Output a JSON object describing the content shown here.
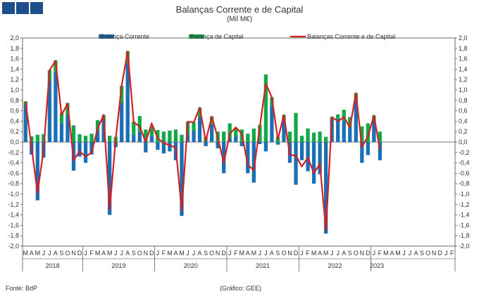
{
  "header": {
    "title": "Balanças Corrente e de Capital",
    "subtitle": "(Mil M€)"
  },
  "footer": {
    "source": "Fonte: BdP",
    "credit": "(Gráfico: GEE)"
  },
  "colors": {
    "current": "#1a6fb5",
    "capital": "#13a84a",
    "combined": "#d42020",
    "axis": "#444444",
    "grid": "#cccccc"
  },
  "chart_data": {
    "type": "bar",
    "stacked": true,
    "title": "Balanças Corrente e de Capital",
    "ylabel": "",
    "xlabel": "",
    "ylim": [
      -2.0,
      2.0
    ],
    "yticks": [
      "2,0",
      "1,8",
      "1,6",
      "1,4",
      "1,2",
      "1,0",
      "0,8",
      "0,6",
      "0,4",
      "0,2",
      "0,0",
      "-0,2",
      "-0,4",
      "-0,6",
      "-0,8",
      "-1,0",
      "-1,2",
      "-1,4",
      "-1,6",
      "-1,8",
      "-2,0"
    ],
    "legend_position": "top",
    "legend": [
      "Balança Corrente",
      "Balança de Capital",
      "Balanças Corrente e de Capital"
    ],
    "month_labels": [
      "M",
      "A",
      "M",
      "J",
      "J",
      "A",
      "S",
      "O",
      "N",
      "D",
      "J",
      "F",
      "M",
      "A",
      "M",
      "J",
      "J",
      "A",
      "S",
      "O",
      "N",
      "D",
      "J",
      "F",
      "M",
      "A",
      "M",
      "J",
      "J",
      "A",
      "S",
      "O",
      "N",
      "D",
      "J",
      "F",
      "M",
      "A",
      "M",
      "J",
      "J",
      "A",
      "S",
      "O",
      "N",
      "D",
      "J",
      "F",
      "M",
      "A",
      "M",
      "J",
      "J",
      "A",
      "S",
      "O",
      "N",
      "D",
      "J",
      "F",
      "M",
      "A",
      "M",
      "J",
      "J",
      "A",
      "S",
      "O",
      "N",
      "D",
      "J",
      "F"
    ],
    "years": [
      {
        "label": "2018",
        "start": 0,
        "count": 10
      },
      {
        "label": "2019",
        "start": 10,
        "count": 12
      },
      {
        "label": "2020",
        "start": 22,
        "count": 12
      },
      {
        "label": "2021",
        "start": 34,
        "count": 12
      },
      {
        "label": "2022",
        "start": 46,
        "count": 12
      },
      {
        "label": "2023",
        "start": 58,
        "count": 2
      }
    ],
    "series": [
      {
        "name": "Balança Corrente",
        "kind": "bar",
        "values": [
          0.72,
          -0.24,
          -1.12,
          -0.3,
          1.18,
          1.34,
          0.36,
          0.52,
          -0.55,
          -0.28,
          -0.4,
          -0.24,
          0.22,
          0.44,
          -1.4,
          -0.1,
          0.75,
          1.5,
          0.14,
          0.2,
          -0.2,
          0.12,
          -0.15,
          -0.22,
          -0.18,
          -0.35,
          -1.42,
          0.16,
          0.22,
          0.48,
          -0.08,
          0.34,
          -0.12,
          -0.6,
          0.08,
          0.12,
          -0.08,
          -0.6,
          -0.78,
          -0.04,
          -0.18,
          0.7,
          -0.05,
          0.42,
          -0.4,
          -0.82,
          -0.35,
          -0.56,
          -0.8,
          -0.62,
          -1.76,
          0.44,
          0.45,
          0.4,
          0.28,
          0.8,
          -0.4,
          -0.25,
          0.43,
          -0.35
        ]
      },
      {
        "name": "Balança de Capital",
        "kind": "bar",
        "values": [
          0.06,
          0.11,
          0.14,
          0.15,
          0.2,
          0.23,
          0.2,
          0.23,
          0.32,
          0.15,
          0.12,
          0.16,
          0.2,
          0.08,
          0.12,
          0.1,
          0.33,
          0.25,
          0.25,
          0.3,
          0.24,
          0.18,
          0.23,
          0.2,
          0.22,
          0.24,
          0.14,
          0.23,
          0.16,
          0.18,
          0.1,
          0.15,
          0.2,
          0.2,
          0.28,
          0.16,
          0.24,
          0.16,
          0.26,
          0.33,
          1.3,
          0.16,
          0.1,
          0.1,
          0.2,
          0.56,
          0.12,
          0.26,
          0.18,
          0.2,
          0.1,
          0.04,
          0.08,
          0.22,
          0.2,
          0.14,
          0.3,
          0.36,
          0.08,
          0.2
        ]
      },
      {
        "name": "Balanças Corrente e de Capital",
        "kind": "line",
        "values": [
          0.78,
          -0.1,
          -0.98,
          -0.15,
          1.38,
          1.56,
          0.52,
          0.74,
          -0.35,
          -0.18,
          -0.28,
          -0.2,
          0.26,
          0.52,
          -1.3,
          0.05,
          1.08,
          1.74,
          0.38,
          0.3,
          0.0,
          0.36,
          0.07,
          -0.02,
          -0.06,
          -0.11,
          -1.32,
          0.39,
          0.38,
          0.66,
          0.02,
          0.49,
          0.08,
          -0.4,
          0.16,
          0.28,
          0.16,
          -0.44,
          -0.54,
          0.29,
          1.12,
          0.86,
          0.05,
          0.52,
          -0.25,
          -0.26,
          -0.47,
          -0.3,
          -0.6,
          -0.42,
          -1.7,
          0.48,
          0.4,
          0.48,
          0.28,
          0.94,
          -0.1,
          0.11,
          0.51,
          -0.15
        ]
      }
    ]
  }
}
